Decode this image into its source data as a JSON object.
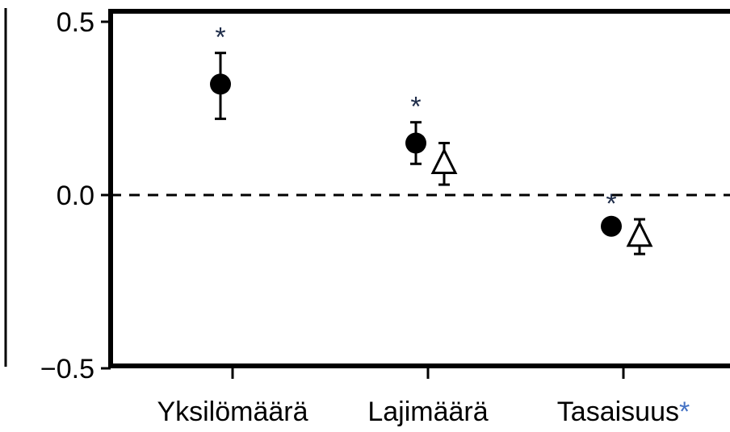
{
  "chart_data": {
    "type": "scatter",
    "title": "",
    "xlabel": "",
    "ylabel": "",
    "ylim": [
      -0.5,
      0.5
    ],
    "yticks": [
      {
        "value": 0.5,
        "label": "0.5"
      },
      {
        "value": 0.0,
        "label": "0.0"
      },
      {
        "value": -0.5,
        "label": "−0.5"
      }
    ],
    "reference_line": {
      "value": 0.0,
      "style": "dashed"
    },
    "categories": [
      {
        "label": "Yksilömäärä",
        "label_asterisk": ""
      },
      {
        "label": "Lajimäärä",
        "label_asterisk": ""
      },
      {
        "label": "Tasaisuus",
        "label_asterisk": "*"
      }
    ],
    "series": [
      {
        "marker": "filled-circle",
        "points": [
          {
            "value": 0.32,
            "ci": [
              0.22,
              0.41
            ],
            "significance": "*"
          },
          {
            "value": 0.15,
            "ci": [
              0.09,
              0.21
            ],
            "significance": "*"
          },
          {
            "value": -0.09,
            "ci": [
              -0.11,
              -0.07
            ],
            "significance": "*"
          }
        ]
      },
      {
        "marker": "open-triangle",
        "points": [
          null,
          {
            "value": 0.09,
            "ci": [
              0.03,
              0.15
            ],
            "significance": ""
          },
          {
            "value": -0.12,
            "ci": [
              -0.17,
              -0.07
            ],
            "significance": ""
          }
        ]
      }
    ],
    "colors": {
      "ink": "#000000",
      "asterisk": "#1f2d4a",
      "label_asterisk": "#4472c4"
    },
    "grid": false,
    "legend": "none"
  }
}
